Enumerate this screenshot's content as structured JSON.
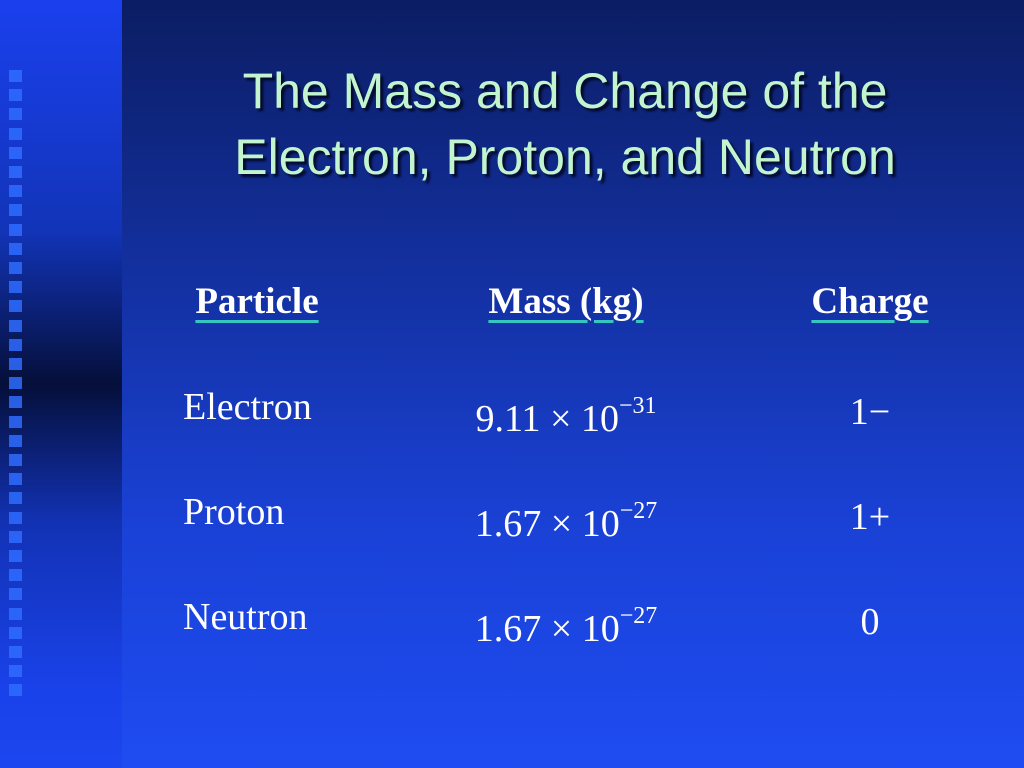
{
  "title": [
    "The Mass and Change of the",
    "Electron, Proton, and Neutron"
  ],
  "table": {
    "headers": [
      "Particle",
      "Mass (kg)",
      "Charge"
    ],
    "rows": [
      {
        "particle": "Electron",
        "mass": {
          "coefficient": "9.11",
          "times": "×",
          "base": "10",
          "exponent": "−31"
        },
        "charge": "1−"
      },
      {
        "particle": "Proton",
        "mass": {
          "coefficient": "1.67",
          "times": "×",
          "base": "10",
          "exponent": "−27"
        },
        "charge": "1+"
      },
      {
        "particle": "Neutron",
        "mass": {
          "coefficient": "1.67",
          "times": "×",
          "base": "10",
          "exponent": "−27"
        },
        "charge": "0"
      }
    ]
  }
}
